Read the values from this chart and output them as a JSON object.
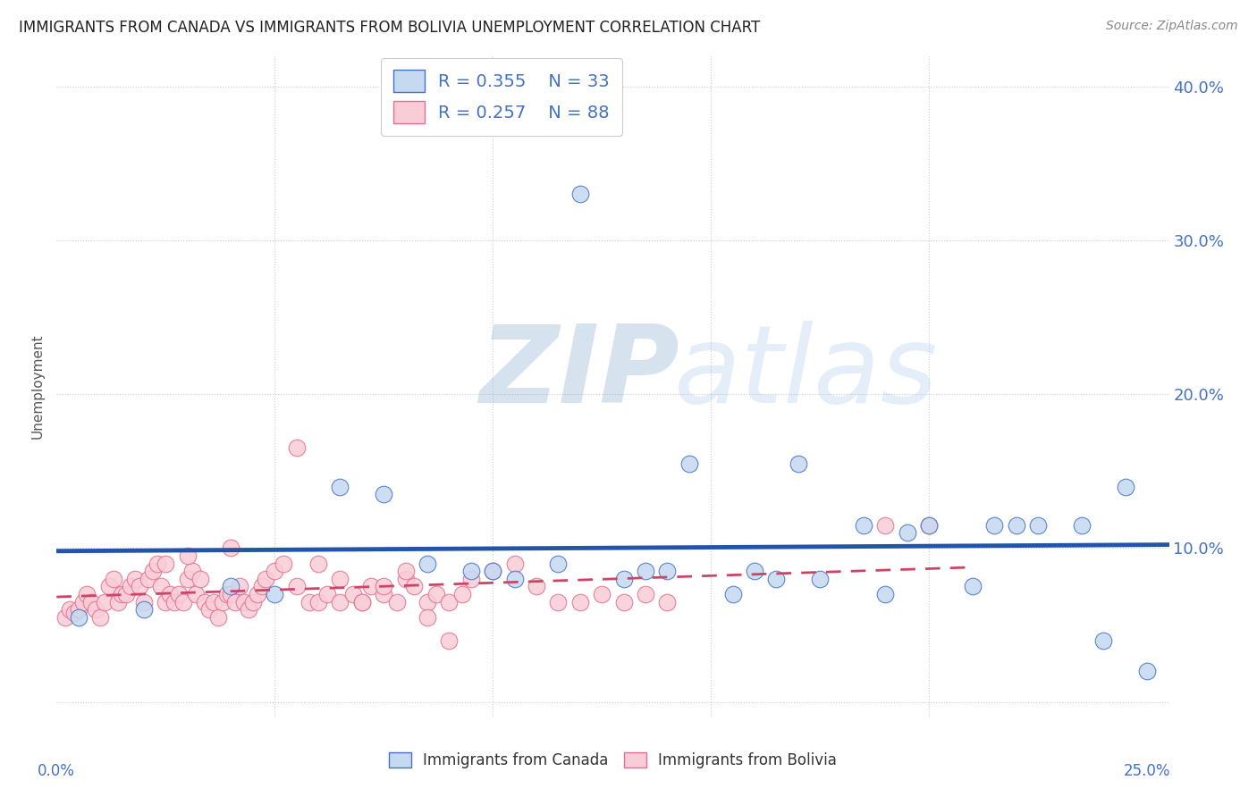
{
  "title": "IMMIGRANTS FROM CANADA VS IMMIGRANTS FROM BOLIVIA UNEMPLOYMENT CORRELATION CHART",
  "source": "Source: ZipAtlas.com",
  "ylabel": "Unemployment",
  "ytick_values": [
    0.0,
    0.1,
    0.2,
    0.3,
    0.4
  ],
  "ytick_labels": [
    "",
    "10.0%",
    "20.0%",
    "30.0%",
    "40.0%"
  ],
  "xlim": [
    0.0,
    0.255
  ],
  "ylim": [
    -0.01,
    0.42
  ],
  "canada_color": "#c5d9f0",
  "canada_edge_color": "#4472c4",
  "canada_line_color": "#2255aa",
  "bolivia_color": "#f9cdd8",
  "bolivia_edge_color": "#e07090",
  "bolivia_line_color": "#cc4466",
  "watermark_zip": "ZIP",
  "watermark_atlas": "atlas",
  "bottom_legend_canada": "Immigrants from Canada",
  "bottom_legend_bolivia": "Immigrants from Bolivia",
  "canada_x": [
    0.005,
    0.02,
    0.04,
    0.05,
    0.065,
    0.075,
    0.085,
    0.095,
    0.1,
    0.105,
    0.115,
    0.12,
    0.13,
    0.135,
    0.14,
    0.145,
    0.155,
    0.16,
    0.165,
    0.17,
    0.175,
    0.185,
    0.19,
    0.195,
    0.2,
    0.21,
    0.215,
    0.22,
    0.225,
    0.235,
    0.24,
    0.245,
    0.25
  ],
  "canada_y": [
    0.055,
    0.06,
    0.075,
    0.07,
    0.14,
    0.135,
    0.09,
    0.085,
    0.085,
    0.08,
    0.09,
    0.33,
    0.08,
    0.085,
    0.085,
    0.155,
    0.07,
    0.085,
    0.08,
    0.155,
    0.08,
    0.115,
    0.07,
    0.11,
    0.115,
    0.075,
    0.115,
    0.115,
    0.115,
    0.115,
    0.04,
    0.14,
    0.02
  ],
  "bolivia_x": [
    0.002,
    0.003,
    0.004,
    0.005,
    0.006,
    0.007,
    0.008,
    0.009,
    0.01,
    0.011,
    0.012,
    0.013,
    0.014,
    0.015,
    0.016,
    0.017,
    0.018,
    0.019,
    0.02,
    0.021,
    0.022,
    0.023,
    0.024,
    0.025,
    0.026,
    0.027,
    0.028,
    0.029,
    0.03,
    0.031,
    0.032,
    0.033,
    0.034,
    0.035,
    0.036,
    0.037,
    0.038,
    0.039,
    0.04,
    0.041,
    0.042,
    0.043,
    0.044,
    0.045,
    0.046,
    0.047,
    0.048,
    0.05,
    0.052,
    0.055,
    0.058,
    0.06,
    0.062,
    0.065,
    0.068,
    0.07,
    0.072,
    0.075,
    0.078,
    0.08,
    0.082,
    0.085,
    0.087,
    0.09,
    0.093,
    0.095,
    0.1,
    0.105,
    0.11,
    0.115,
    0.12,
    0.125,
    0.13,
    0.135,
    0.14,
    0.025,
    0.03,
    0.04,
    0.055,
    0.06,
    0.065,
    0.07,
    0.075,
    0.08,
    0.085,
    0.09,
    0.19,
    0.2
  ],
  "bolivia_y": [
    0.055,
    0.06,
    0.058,
    0.06,
    0.065,
    0.07,
    0.065,
    0.06,
    0.055,
    0.065,
    0.075,
    0.08,
    0.065,
    0.07,
    0.07,
    0.075,
    0.08,
    0.075,
    0.065,
    0.08,
    0.085,
    0.09,
    0.075,
    0.065,
    0.07,
    0.065,
    0.07,
    0.065,
    0.08,
    0.085,
    0.07,
    0.08,
    0.065,
    0.06,
    0.065,
    0.055,
    0.065,
    0.07,
    0.07,
    0.065,
    0.075,
    0.065,
    0.06,
    0.065,
    0.07,
    0.075,
    0.08,
    0.085,
    0.09,
    0.075,
    0.065,
    0.065,
    0.07,
    0.065,
    0.07,
    0.065,
    0.075,
    0.07,
    0.065,
    0.08,
    0.075,
    0.065,
    0.07,
    0.065,
    0.07,
    0.08,
    0.085,
    0.09,
    0.075,
    0.065,
    0.065,
    0.07,
    0.065,
    0.07,
    0.065,
    0.09,
    0.095,
    0.1,
    0.165,
    0.09,
    0.08,
    0.065,
    0.075,
    0.085,
    0.055,
    0.04,
    0.115,
    0.115
  ]
}
